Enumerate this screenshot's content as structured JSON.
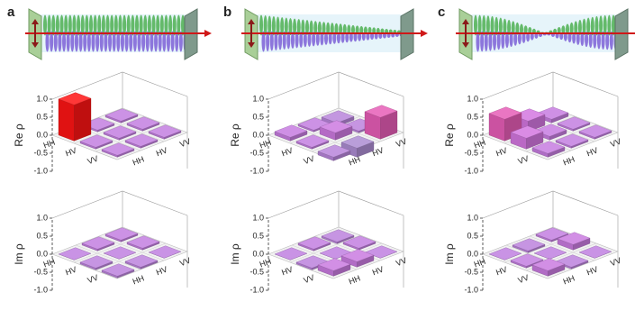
{
  "chart_data": [
    {
      "type": "bar3d",
      "panel_label": "a",
      "zlabel": "Re ρ",
      "rows": [
        "HH",
        "HV",
        "VV"
      ],
      "cols": [
        "HH",
        "HV",
        "VV"
      ],
      "values": [
        [
          1.0,
          0.05,
          0.05
        ],
        [
          0.05,
          0.05,
          0.05
        ],
        [
          0.05,
          0.05,
          0.05
        ]
      ],
      "zlim": [
        -1,
        1
      ],
      "zticks": [
        {
          "value": 1,
          "label": "1.0"
        },
        {
          "value": 0.5,
          "label": "0.5"
        },
        {
          "value": 0,
          "label": "0.0"
        },
        {
          "value": -0.5,
          "label": "-0.5"
        },
        {
          "value": -1,
          "label": "-1.0"
        }
      ],
      "colormap": [
        "#2828ff",
        "#9a9ac4",
        "#c080e0",
        "#e070e0",
        "#ff1414"
      ]
    },
    {
      "type": "bar3d",
      "zlabel": "Im ρ",
      "rows": [
        "HH",
        "HV",
        "VV"
      ],
      "cols": [
        "HH",
        "HV",
        "VV"
      ],
      "values": [
        [
          0,
          0.05,
          0.05
        ],
        [
          -0.05,
          0,
          0.05
        ],
        [
          -0.05,
          -0.05,
          0
        ]
      ],
      "zlim": [
        -1,
        1
      ],
      "zticks": [
        {
          "value": 1,
          "label": "1.0"
        },
        {
          "value": 0.5,
          "label": "0.5"
        },
        {
          "value": 0,
          "label": "0.0"
        },
        {
          "value": -0.5,
          "label": "-0.5"
        },
        {
          "value": -1,
          "label": "-1.0"
        }
      ],
      "colormap": [
        "#2828ff",
        "#9a9ac4",
        "#c080e0",
        "#e070e0",
        "#ff1414"
      ]
    },
    {
      "type": "bar3d",
      "panel_label": "b",
      "zlabel": "Re ρ",
      "rows": [
        "HH",
        "HV",
        "VV"
      ],
      "cols": [
        "HH",
        "HV",
        "VV"
      ],
      "values": [
        [
          0.1,
          0.05,
          -0.1
        ],
        [
          0.05,
          0.2,
          -0.05
        ],
        [
          -0.1,
          -0.25,
          0.6
        ]
      ],
      "zlim": [
        -1,
        1
      ],
      "zticks": [
        {
          "value": 1,
          "label": "1.0"
        },
        {
          "value": 0.5,
          "label": "0.5"
        },
        {
          "value": 0,
          "label": "0.0"
        },
        {
          "value": -0.5,
          "label": "-0.5"
        },
        {
          "value": -1,
          "label": "-1.0"
        }
      ],
      "colormap": [
        "#2828ff",
        "#9a9ac4",
        "#c080e0",
        "#e070e0",
        "#ff1414"
      ]
    },
    {
      "type": "bar3d",
      "zlabel": "Im ρ",
      "rows": [
        "HH",
        "HV",
        "VV"
      ],
      "cols": [
        "HH",
        "HV",
        "VV"
      ],
      "values": [
        [
          0,
          0.05,
          -0.05
        ],
        [
          -0.05,
          0,
          0.05
        ],
        [
          0.15,
          0.15,
          0
        ]
      ],
      "zlim": [
        -1,
        1
      ],
      "zticks": [
        {
          "value": 1,
          "label": "1.0"
        },
        {
          "value": 0.5,
          "label": "0.5"
        },
        {
          "value": 0,
          "label": "0.0"
        },
        {
          "value": -0.5,
          "label": "-0.5"
        },
        {
          "value": -1,
          "label": "-1.0"
        }
      ],
      "colormap": [
        "#2828ff",
        "#9a9ac4",
        "#c080e0",
        "#e070e0",
        "#ff1414"
      ]
    },
    {
      "type": "bar3d",
      "panel_label": "c",
      "zlabel": "Re ρ",
      "rows": [
        "HH",
        "HV",
        "VV"
      ],
      "cols": [
        "HH",
        "HV",
        "VV"
      ],
      "values": [
        [
          0.6,
          0.3,
          0.1
        ],
        [
          0.3,
          0.1,
          0.05
        ],
        [
          0.1,
          0.05,
          0.05
        ]
      ],
      "zlim": [
        -1,
        1
      ],
      "zticks": [
        {
          "value": 1,
          "label": "1.0"
        },
        {
          "value": 0.5,
          "label": "0.5"
        },
        {
          "value": 0,
          "label": "0.0"
        },
        {
          "value": -0.5,
          "label": "-0.5"
        },
        {
          "value": -1,
          "label": "-1.0"
        }
      ],
      "colormap": [
        "#2828ff",
        "#9a9ac4",
        "#c080e0",
        "#e070e0",
        "#ff1414"
      ]
    },
    {
      "type": "bar3d",
      "zlabel": "Im ρ",
      "rows": [
        "HH",
        "HV",
        "VV"
      ],
      "cols": [
        "HH",
        "HV",
        "VV"
      ],
      "values": [
        [
          0,
          -0.05,
          0.05
        ],
        [
          0.05,
          0,
          0.15
        ],
        [
          0.15,
          -0.05,
          0
        ]
      ],
      "zlim": [
        -1,
        1
      ],
      "zticks": [
        {
          "value": 1,
          "label": "1.0"
        },
        {
          "value": 0.5,
          "label": "0.5"
        },
        {
          "value": 0,
          "label": "0.0"
        },
        {
          "value": -0.5,
          "label": "-0.5"
        },
        {
          "value": -1,
          "label": "-1.0"
        }
      ],
      "colormap": [
        "#2828ff",
        "#9a9ac4",
        "#c080e0",
        "#e070e0",
        "#ff1414"
      ]
    }
  ]
}
